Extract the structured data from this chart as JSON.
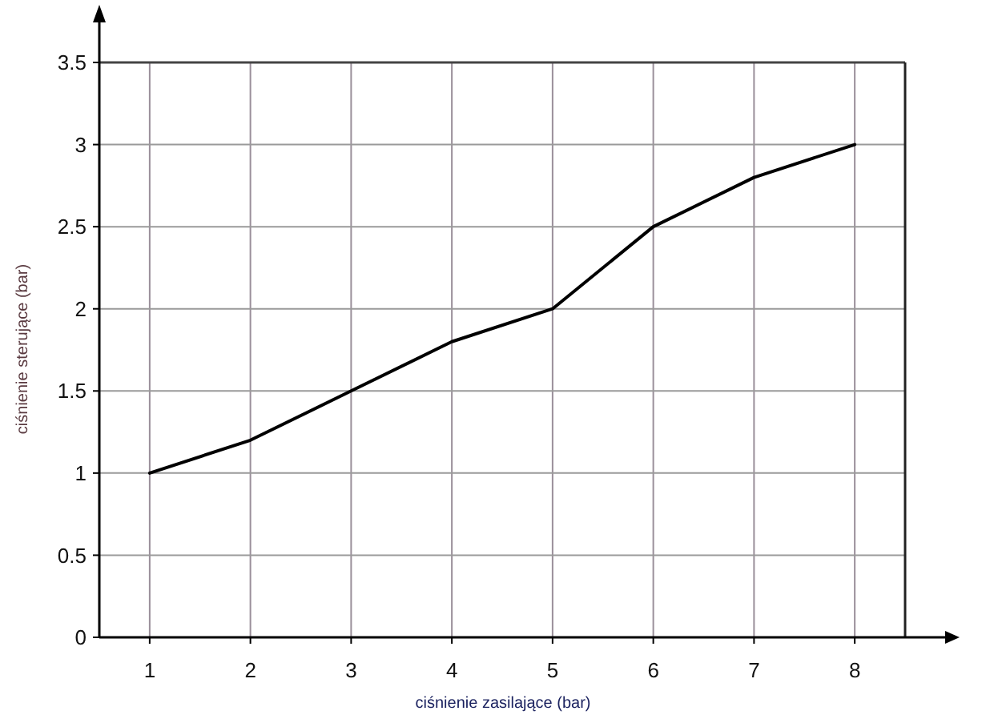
{
  "chart_data": {
    "type": "line",
    "xlabel": "ciśnienie zasilające (bar)",
    "ylabel": "ciśnienie sterujące (bar)",
    "x": [
      1,
      2,
      3,
      4,
      5,
      6,
      7,
      8
    ],
    "series": [
      {
        "color": "#000000",
        "values": [
          1,
          1.2,
          1.5,
          1.8,
          2,
          2.5,
          2.8,
          3
        ]
      }
    ],
    "xlim": [
      0.5,
      8.5
    ],
    "xticks": [
      1,
      2,
      3,
      4,
      5,
      6,
      7,
      8
    ],
    "ylim": [
      0,
      3.5
    ],
    "yticks": [
      0,
      0.5,
      1,
      1.5,
      2,
      2.5,
      3,
      3.5
    ],
    "grid": true,
    "marker": "none",
    "line_style": "solid"
  }
}
